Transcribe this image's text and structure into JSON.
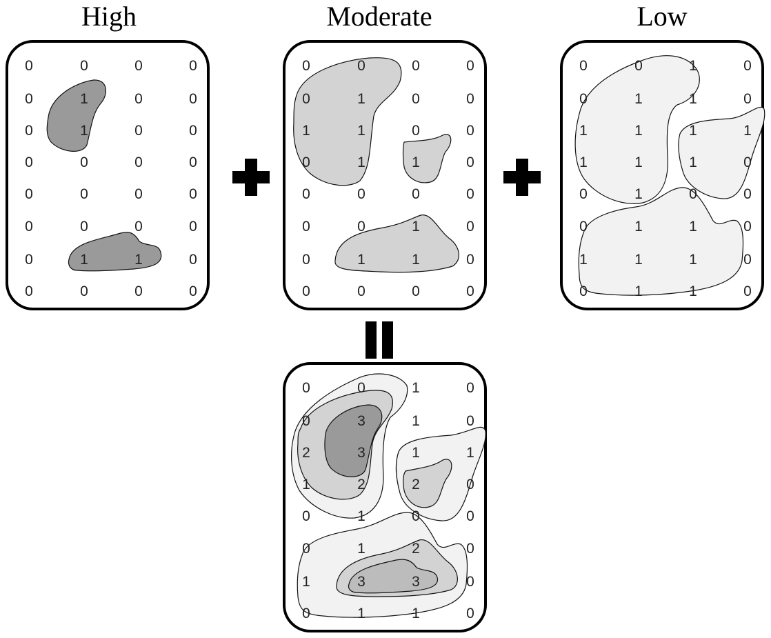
{
  "panels": {
    "high": {
      "title": "High",
      "grid": [
        [
          "0",
          "0",
          "0",
          "0"
        ],
        [
          "0",
          "1",
          "0",
          "0"
        ],
        [
          "0",
          "1",
          "0",
          "0"
        ],
        [
          "0",
          "0",
          "0",
          "0"
        ],
        [
          "0",
          "0",
          "0",
          "0"
        ],
        [
          "0",
          "0",
          "0",
          "0"
        ],
        [
          "0",
          "1",
          "1",
          "0"
        ],
        [
          "0",
          "0",
          "0",
          "0"
        ]
      ]
    },
    "moderate": {
      "title": "Moderate",
      "grid": [
        [
          "0",
          "0",
          "0",
          "0"
        ],
        [
          "0",
          "1",
          "0",
          "0"
        ],
        [
          "1",
          "1",
          "0",
          "0"
        ],
        [
          "0",
          "1",
          "1",
          "0"
        ],
        [
          "0",
          "0",
          "0",
          "0"
        ],
        [
          "0",
          "0",
          "1",
          "0"
        ],
        [
          "0",
          "1",
          "1",
          "0"
        ],
        [
          "0",
          "0",
          "0",
          "0"
        ]
      ]
    },
    "low": {
      "title": "Low",
      "grid": [
        [
          "0",
          "0",
          "1",
          "0"
        ],
        [
          "0",
          "1",
          "1",
          "0"
        ],
        [
          "1",
          "1",
          "1",
          "1"
        ],
        [
          "1",
          "1",
          "1",
          "0"
        ],
        [
          "0",
          "1",
          "0",
          "0"
        ],
        [
          "0",
          "1",
          "1",
          "0"
        ],
        [
          "1",
          "1",
          "1",
          "0"
        ],
        [
          "0",
          "1",
          "1",
          "0"
        ]
      ]
    },
    "sum": {
      "grid": [
        [
          "0",
          "0",
          "1",
          "0"
        ],
        [
          "0",
          "3",
          "1",
          "0"
        ],
        [
          "2",
          "3",
          "1",
          "1"
        ],
        [
          "1",
          "2",
          "2",
          "0"
        ],
        [
          "0",
          "1",
          "0",
          "0"
        ],
        [
          "0",
          "1",
          "2",
          "0"
        ],
        [
          "1",
          "3",
          "3",
          "0"
        ],
        [
          "0",
          "1",
          "1",
          "0"
        ]
      ]
    }
  },
  "operators": {
    "plus_1": "plus-icon",
    "plus_2": "plus-icon",
    "equals": "equals-icon"
  },
  "colors": {
    "high_fill": "#9a9a9a",
    "moderate_fill": "#d3d3d3",
    "low_fill": "#f2f2f2",
    "outline": "#111111"
  }
}
